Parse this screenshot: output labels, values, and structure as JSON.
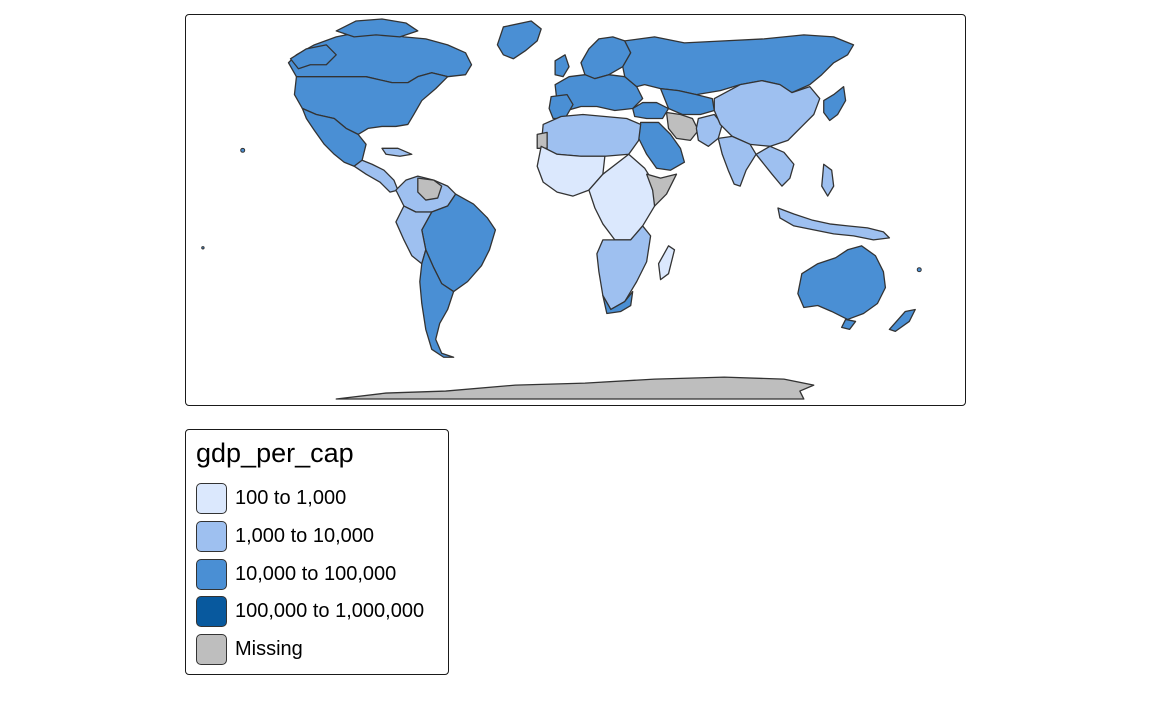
{
  "map": {
    "legend": {
      "title": "gdp_per_cap",
      "classes": [
        {
          "label": "100 to 1,000",
          "color": "#dbe8fd"
        },
        {
          "label": "1,000 to 10,000",
          "color": "#9ec0f0"
        },
        {
          "label": "10,000 to 100,000",
          "color": "#4a8fd4"
        },
        {
          "label": "100,000 to 1,000,000",
          "color": "#08599e"
        },
        {
          "label": "Missing",
          "color": "#bebebe"
        }
      ]
    },
    "border_color": "#333333"
  }
}
